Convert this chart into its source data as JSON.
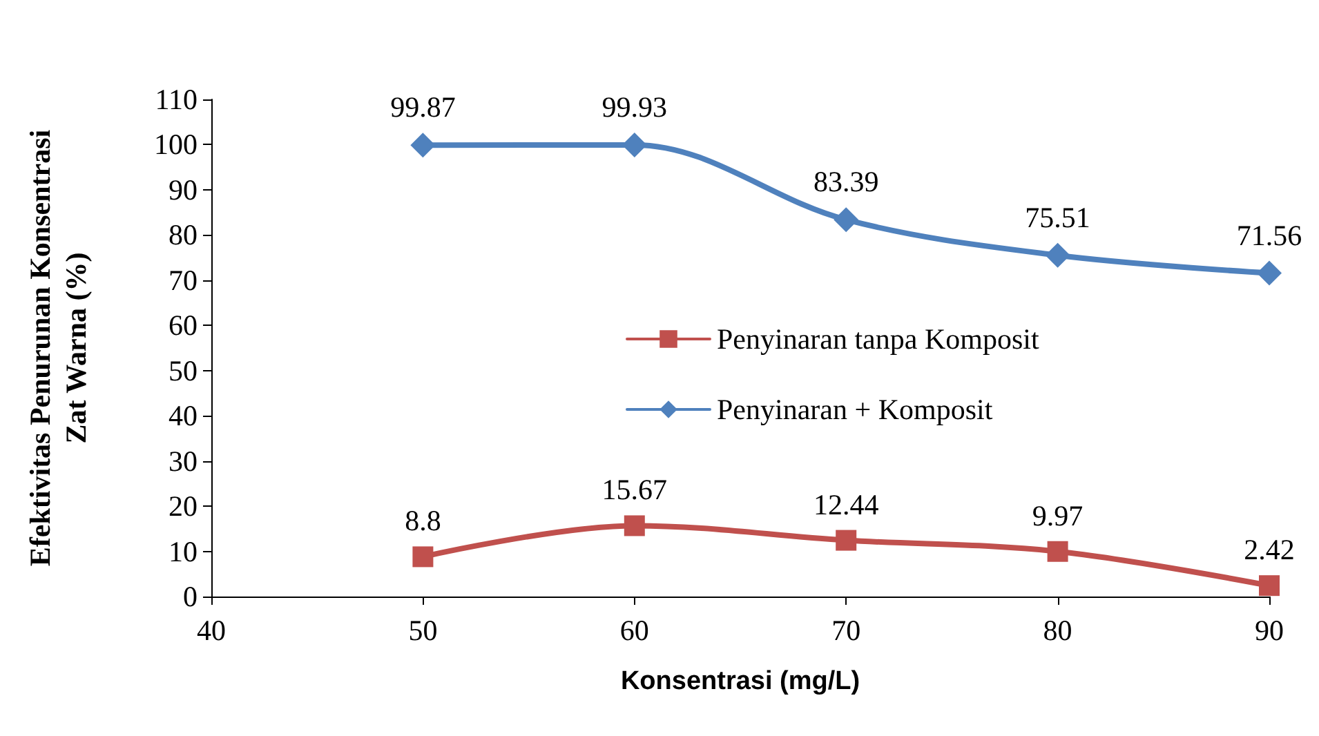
{
  "chart_data": {
    "type": "line",
    "xlabel": "Konsentrasi (mg/L)",
    "ylabel": "Efektivitas Penurunan Konsentrasi\nZat Warna (%)",
    "x": [
      50,
      60,
      70,
      80,
      90
    ],
    "series": [
      {
        "name": "Penyinaran tanpa Komposit",
        "color": "#c0504d",
        "marker": "square",
        "values": [
          8.8,
          15.67,
          12.44,
          9.97,
          2.42
        ]
      },
      {
        "name": "Penyinaran + Komposit",
        "color": "#4f81bd",
        "marker": "diamond",
        "values": [
          99.87,
          99.93,
          83.39,
          75.51,
          71.56
        ]
      }
    ],
    "xlim": [
      40,
      90
    ],
    "xticks": [
      40,
      50,
      60,
      70,
      80,
      90
    ],
    "ylim": [
      0,
      110
    ],
    "yticks": [
      0,
      10,
      20,
      30,
      40,
      50,
      60,
      70,
      80,
      90,
      100,
      110
    ],
    "data_labels": true,
    "grid": false,
    "legend": "right",
    "line_style": "solid"
  }
}
